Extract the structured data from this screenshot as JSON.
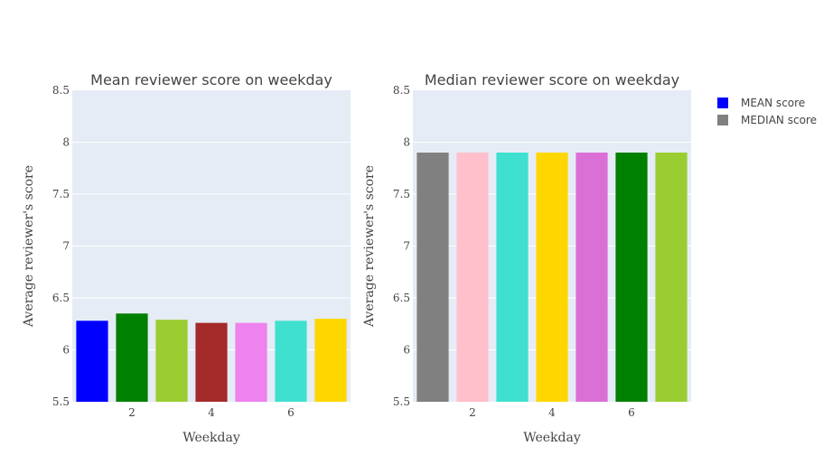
{
  "chart_data": [
    {
      "type": "bar",
      "title": "Mean reviewer score on weekday",
      "xlabel": "Weekday",
      "ylabel": "Average reviewer's score",
      "x": [
        1,
        2,
        3,
        4,
        5,
        6,
        7
      ],
      "x_ticks": [
        2,
        4,
        6
      ],
      "x_tick_labels": [
        "2",
        "4",
        "6"
      ],
      "values": [
        6.28,
        6.35,
        6.29,
        6.26,
        6.26,
        6.28,
        6.3
      ],
      "bar_colors": [
        "#0000FF",
        "#008000",
        "#9ACD32",
        "#A52A2A",
        "#EE82EE",
        "#40E0D0",
        "#FFD700"
      ],
      "ylim": [
        5.5,
        8.5
      ],
      "y_ticks": [
        5.5,
        6,
        6.5,
        7,
        7.5,
        8,
        8.5
      ],
      "y_tick_labels": [
        "5.5",
        "6",
        "6.5",
        "7",
        "7.5",
        "8",
        "8.5"
      ],
      "grid": true
    },
    {
      "type": "bar",
      "title": "Median reviewer score on weekday",
      "xlabel": "Weekday",
      "ylabel": "Average reviewer's score",
      "x": [
        1,
        2,
        3,
        4,
        5,
        6,
        7
      ],
      "x_ticks": [
        2,
        4,
        6
      ],
      "x_tick_labels": [
        "2",
        "4",
        "6"
      ],
      "values": [
        7.9,
        7.9,
        7.9,
        7.9,
        7.9,
        7.9,
        7.9
      ],
      "bar_colors": [
        "#808080",
        "#FFC0CB",
        "#40E0D0",
        "#FFD700",
        "#DA70D6",
        "#008000",
        "#9ACD32"
      ],
      "ylim": [
        5.5,
        8.5
      ],
      "y_ticks": [
        5.5,
        6,
        6.5,
        7,
        7.5,
        8,
        8.5
      ],
      "y_tick_labels": [
        "5.5",
        "6",
        "6.5",
        "7",
        "7.5",
        "8",
        "8.5"
      ],
      "grid": true
    }
  ],
  "legend": {
    "placement": "top-right",
    "items": [
      {
        "label": "MEAN score",
        "color": "#0000FF"
      },
      {
        "label": "MEDIAN score",
        "color": "#808080"
      }
    ]
  },
  "colors": {
    "plot_background": "#E5ECF6",
    "grid": "#FFFFFF",
    "text": "#444444"
  }
}
